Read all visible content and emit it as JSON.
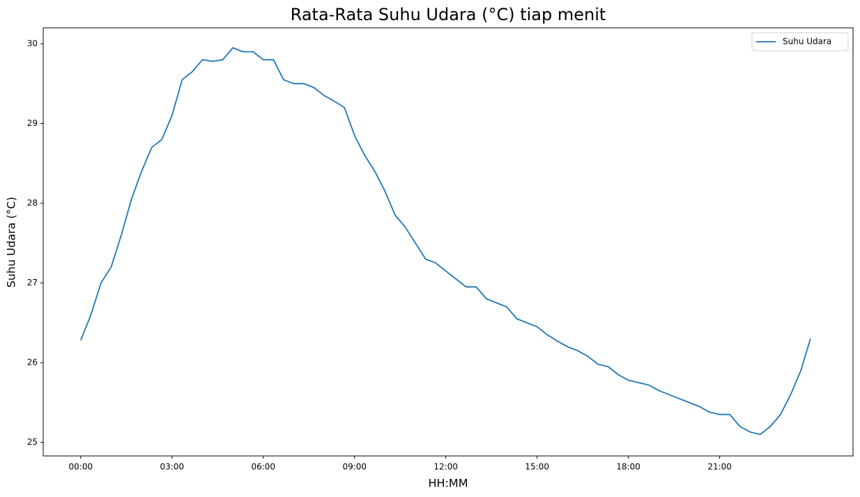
{
  "chart_data": {
    "type": "line",
    "title": "Rata-Rata Suhu Udara (°C) tiap menit",
    "xlabel": "HH:MM",
    "ylabel": "Suhu Udara (°C)",
    "x": [
      0,
      20,
      40,
      60,
      80,
      100,
      120,
      140,
      160,
      180,
      200,
      220,
      240,
      260,
      280,
      300,
      320,
      340,
      360,
      380,
      400,
      420,
      440,
      460,
      480,
      500,
      520,
      540,
      560,
      580,
      600,
      620,
      640,
      660,
      680,
      700,
      720,
      740,
      760,
      780,
      800,
      820,
      840,
      860,
      880,
      900,
      920,
      940,
      960,
      980,
      1000,
      1020,
      1040,
      1060,
      1080,
      1100,
      1120,
      1140,
      1160,
      1180,
      1200,
      1220,
      1240,
      1260,
      1280,
      1300,
      1320,
      1340,
      1360,
      1380,
      1400,
      1420,
      1439
    ],
    "series": [
      {
        "name": "Suhu Udara",
        "color": "#1f77b4",
        "values": [
          26.28,
          26.6,
          27.0,
          27.2,
          27.6,
          28.05,
          28.4,
          28.7,
          28.8,
          29.1,
          29.55,
          29.65,
          29.8,
          29.78,
          29.8,
          29.95,
          29.9,
          29.9,
          29.8,
          29.8,
          29.55,
          29.5,
          29.5,
          29.45,
          29.35,
          29.28,
          29.2,
          28.85,
          28.6,
          28.4,
          28.15,
          27.85,
          27.7,
          27.5,
          27.3,
          27.25,
          27.15,
          27.05,
          26.95,
          26.95,
          26.8,
          26.75,
          26.7,
          26.55,
          26.5,
          26.45,
          26.35,
          26.27,
          26.2,
          26.15,
          26.08,
          25.98,
          25.95,
          25.85,
          25.78,
          25.75,
          25.72,
          25.65,
          25.6,
          25.55,
          25.5,
          25.45,
          25.38,
          25.35,
          25.35,
          25.2,
          25.13,
          25.1,
          25.2,
          25.35,
          25.6,
          25.9,
          26.3
        ]
      }
    ],
    "xlim": [
      -74,
      1523
    ],
    "xticks": [
      {
        "value": 0,
        "label": "00:00"
      },
      {
        "value": 180,
        "label": "03:00"
      },
      {
        "value": 360,
        "label": "06:00"
      },
      {
        "value": 540,
        "label": "09:00"
      },
      {
        "value": 720,
        "label": "12:00"
      },
      {
        "value": 900,
        "label": "15:00"
      },
      {
        "value": 1080,
        "label": "18:00"
      },
      {
        "value": 1260,
        "label": "21:00"
      }
    ],
    "ylim": [
      24.83,
      30.2
    ],
    "yticks": [
      25,
      26,
      27,
      28,
      29,
      30
    ],
    "legend": "upper right"
  }
}
